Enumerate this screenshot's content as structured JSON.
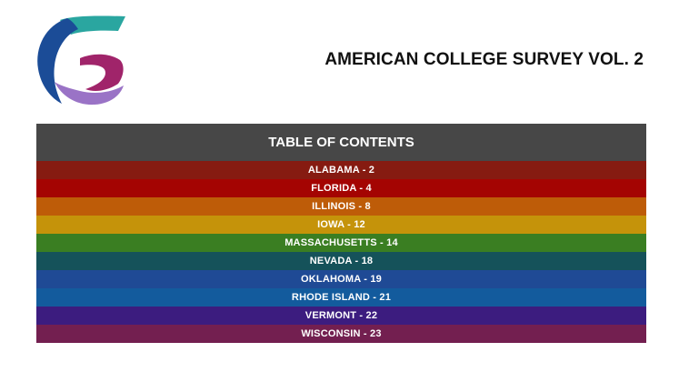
{
  "header": {
    "logo_icon": "brand-logo-icon",
    "title": "AMERICAN COLLEGE SURVEY VOL. 2"
  },
  "toc": {
    "heading": "TABLE OF CONTENTS",
    "items": [
      {
        "label": "ALABAMA - 2",
        "color": "#861b11"
      },
      {
        "label": "FLORIDA - 4",
        "color": "#a40402"
      },
      {
        "label": "ILLINOIS - 8",
        "color": "#be5c08"
      },
      {
        "label": "IOWA - 12",
        "color": "#c5930a"
      },
      {
        "label": "MASSACHUSETTS - 14",
        "color": "#3a7e22"
      },
      {
        "label": "NEVADA - 18",
        "color": "#15525a"
      },
      {
        "label": "OKLAHOMA - 19",
        "color": "#1f4a95"
      },
      {
        "label": "RHODE ISLAND - 21",
        "color": "#135b9d"
      },
      {
        "label": "VERMONT - 22",
        "color": "#3c1c7f"
      },
      {
        "label": "WISCONSIN - 23",
        "color": "#731f50"
      }
    ]
  }
}
